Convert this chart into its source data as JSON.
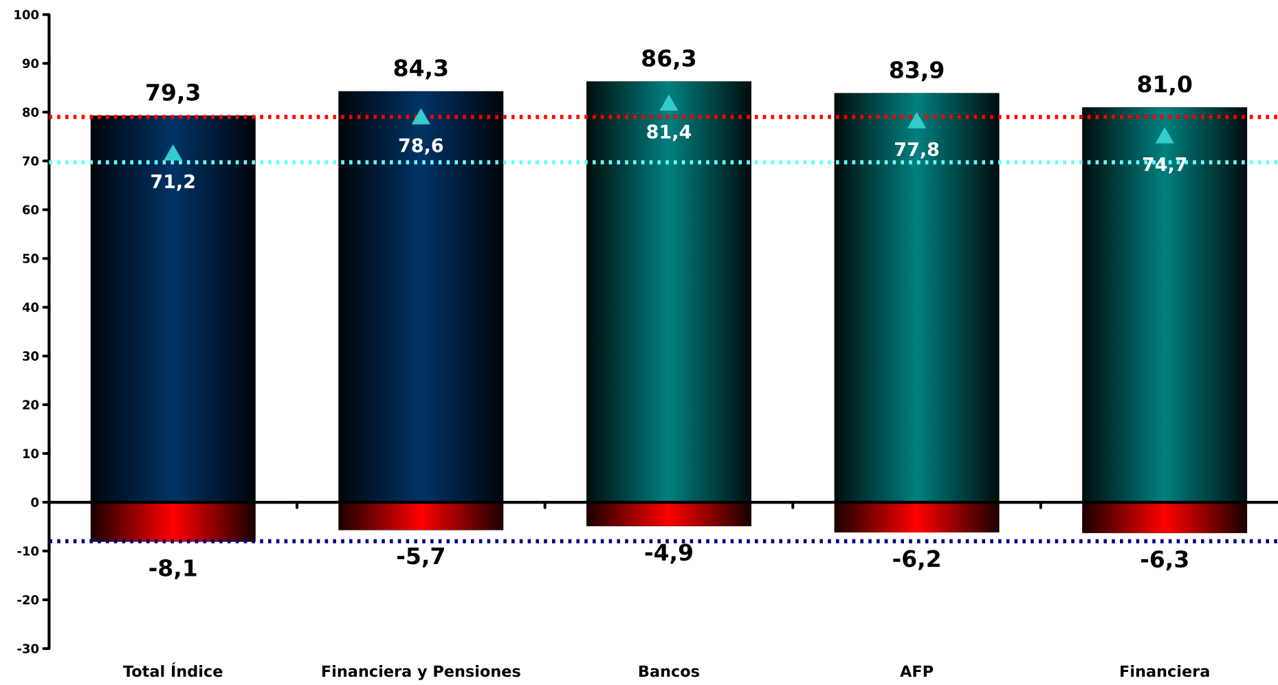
{
  "chart_data": {
    "type": "bar",
    "stacked": true,
    "categories": [
      "Total Índice",
      "Financiera y Pensiones",
      "Bancos",
      "AFP",
      "Financiera"
    ],
    "ylim": [
      -30,
      100
    ],
    "yticks": [
      -30,
      -20,
      -10,
      0,
      10,
      20,
      30,
      40,
      50,
      60,
      70,
      80,
      90,
      100
    ],
    "series": [
      {
        "values": [
          79.3,
          84.3,
          86.3,
          83.9,
          81.0
        ],
        "colors": [
          "#003366",
          "#003366",
          "#008080",
          "#008080",
          "#008080"
        ],
        "value_labels": [
          "79,3",
          "84,3",
          "86,3",
          "83,9",
          "81,0"
        ]
      },
      {
        "values": [
          -8.1,
          -5.7,
          -4.9,
          -6.2,
          -6.3
        ],
        "color": "#ff0000",
        "value_labels": [
          "-8,1",
          "-5,7",
          "-4,9",
          "-6,2",
          "-6,3"
        ]
      },
      {
        "type": "scatter",
        "x": [
          "Total Índice",
          "Financiera y Pensiones",
          "Bancos",
          "AFP",
          "Financiera"
        ],
        "values": [
          71.2,
          78.6,
          81.4,
          77.8,
          74.7
        ],
        "color": "#33cccc",
        "marker": "triangle",
        "value_labels": [
          "71,2",
          "78,6",
          "81,4",
          "77,8",
          "74,7"
        ]
      }
    ],
    "ref_lines": [
      {
        "axis": "y",
        "value": 79,
        "color": "#ff0000",
        "line_style": "dotted"
      },
      {
        "axis": "y",
        "value": 69.7,
        "color": "#66ffff",
        "line_style": "dotted"
      },
      {
        "axis": "y",
        "value": -8,
        "color": "#000080",
        "line_style": "dotted"
      }
    ]
  }
}
